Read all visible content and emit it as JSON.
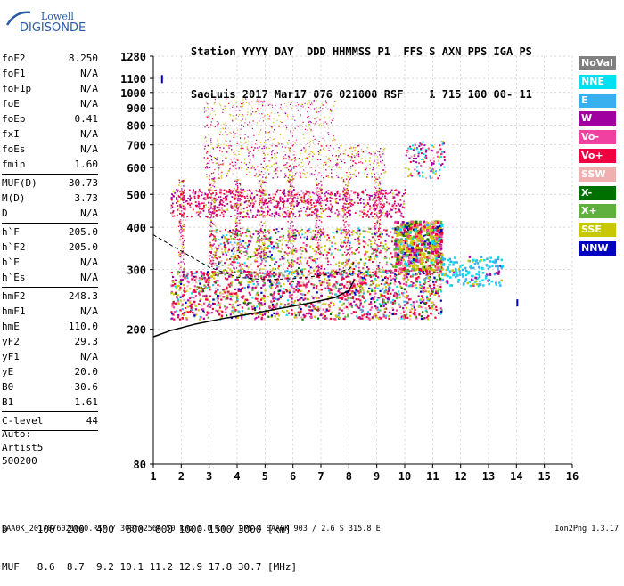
{
  "logo": {
    "line1": "Lowell",
    "line2": "DIGISONDE"
  },
  "header": {
    "row1": "Station YYYY DAY  DDD HHMMSS P1  FFS S AXN PPS IGA PS",
    "row2": "SaoLuis 2017 Mar17 076 021000 RSF    1 715 100 00- 11"
  },
  "params": [
    {
      "label": "foF2",
      "value": "8.250"
    },
    {
      "label": "foF1",
      "value": "N/A"
    },
    {
      "label": "foF1p",
      "value": "N/A"
    },
    {
      "label": "foE",
      "value": "N/A"
    },
    {
      "label": "foEp",
      "value": "0.41"
    },
    {
      "label": "fxI",
      "value": "N/A"
    },
    {
      "label": "foEs",
      "value": "N/A"
    },
    {
      "label": "fmin",
      "value": "1.60"
    },
    {
      "sep": true
    },
    {
      "label": "MUF(D)",
      "value": "30.73"
    },
    {
      "label": "M(D)",
      "value": "3.73"
    },
    {
      "label": "D",
      "value": "N/A"
    },
    {
      "sep": true
    },
    {
      "label": "h`F",
      "value": "205.0"
    },
    {
      "label": "h`F2",
      "value": "205.0"
    },
    {
      "label": "h`E",
      "value": "N/A"
    },
    {
      "label": "h`Es",
      "value": "N/A"
    },
    {
      "sep": true
    },
    {
      "label": "hmF2",
      "value": "248.3"
    },
    {
      "label": "hmF1",
      "value": "N/A"
    },
    {
      "label": "hmE",
      "value": "110.0"
    },
    {
      "label": "yF2",
      "value": "29.3"
    },
    {
      "label": "yF1",
      "value": "N/A"
    },
    {
      "label": "yE",
      "value": "20.0"
    },
    {
      "label": "B0",
      "value": "30.6"
    },
    {
      "label": "B1",
      "value": "1.61"
    },
    {
      "sep": true
    },
    {
      "label": "C-level",
      "value": "44"
    },
    {
      "sep": true
    }
  ],
  "auto": [
    "Auto:",
    "Artist5",
    "500200"
  ],
  "legend": [
    {
      "label": "NoVal",
      "color": "#808080"
    },
    {
      "label": "NNE",
      "color": "#00e0f0"
    },
    {
      "label": "E",
      "color": "#38b0f0"
    },
    {
      "label": "W",
      "color": "#a000a0"
    },
    {
      "label": "Vo-",
      "color": "#f040a0"
    },
    {
      "label": "Vo+",
      "color": "#f00040"
    },
    {
      "label": "SSW",
      "color": "#f0b0b0"
    },
    {
      "label": "X-",
      "color": "#007000"
    },
    {
      "label": "X+",
      "color": "#60b040"
    },
    {
      "label": "SSE",
      "color": "#c8c800"
    },
    {
      "label": "NNW",
      "color": "#0000c0"
    }
  ],
  "chart_data": {
    "type": "scatter",
    "xlabel": "",
    "ylabel": "",
    "xlim": [
      1,
      16
    ],
    "ylim": [
      80,
      1280
    ],
    "y_scale": "log",
    "x_ticks": [
      "1",
      "2",
      "3",
      "4",
      "5",
      "6",
      "7",
      "8",
      "9",
      "10",
      "11",
      "12",
      "13",
      "14",
      "15",
      "16"
    ],
    "y_ticks": [
      "80",
      "200",
      "300",
      "400",
      "500",
      "600",
      "700",
      "800",
      "900",
      "1000",
      "1100",
      "1280"
    ],
    "grid": true,
    "trace": {
      "name": "",
      "x": [
        1.0,
        1.6,
        2.5,
        3.5,
        4.5,
        5.5,
        6.5,
        7.5,
        8.0,
        8.2
      ],
      "y": [
        190,
        198,
        207,
        215,
        222,
        230,
        238,
        248,
        260,
        280
      ]
    },
    "profile": {
      "x": [
        1.0,
        2.0,
        3.0,
        4.0,
        5.0,
        6.0,
        7.0,
        8.0,
        8.25
      ],
      "y": [
        380,
        340,
        305,
        285,
        280,
        282,
        288,
        300,
        320
      ]
    }
  },
  "muf_table": {
    "d_row": "D     100  200  400  600  800 1000 1500 3000 [km]",
    "muf_row": "MUF   8.6  8.7  9.2 10.1 11.2 12.9 17.8 30.7 [MHz]"
  },
  "footer": {
    "left": "SAA0K_2017076021000.RSF / 300fx256h 50 kHz 5.0 km / DPS-4 SAA0K 903 / 2.6 S 315.8 E",
    "right": "Ion2Png 1.3.17"
  }
}
